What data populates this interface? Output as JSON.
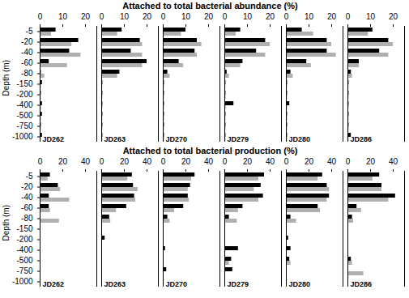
{
  "chart_data": [
    {
      "type": "bar",
      "orientation": "horizontal",
      "title": "Attached to total bacterial abundance (%)",
      "ylabel": "Depth (m)",
      "categories": [
        "-5",
        "-20",
        "-40",
        "-60",
        "-80",
        "-150",
        "-200",
        "-400",
        "-500",
        "-750",
        "-1000"
      ],
      "xlim": [
        0,
        25
      ],
      "xticks": [
        0,
        10,
        20
      ],
      "panels": [
        {
          "name": "JD262",
          "series": [
            {
              "color": "#000000",
              "values": [
                7,
                17,
                13,
                4,
                0.5,
                1,
                0.5,
                1,
                1,
                0.5,
                1
              ]
            },
            {
              "color": "#b0b0b0",
              "values": [
                5,
                14,
                18,
                12,
                2,
                0.5,
                0.5,
                0.5,
                0.5,
                0.5,
                0.5
              ]
            }
          ]
        },
        {
          "name": "JD263",
          "series": [
            {
              "color": "#000000",
              "values": [
                9,
                17,
                13,
                20,
                8,
                0.5,
                0.5,
                0.5,
                0.5,
                0.5,
                0.5
              ]
            },
            {
              "color": "#b0b0b0",
              "values": [
                7,
                18,
                18,
                18,
                7,
                0.5,
                0.5,
                0.5,
                0.5,
                0.5,
                0.5
              ]
            }
          ]
        },
        {
          "name": "JD270",
          "series": [
            {
              "color": "#000000",
              "values": [
                10,
                15,
                14,
                7,
                2,
                0.5,
                0.5,
                0.5,
                0.5,
                0.5,
                0.5
              ]
            },
            {
              "color": "#b0b0b0",
              "values": [
                8,
                17,
                15,
                9,
                3,
                0.5,
                0.5,
                0.5,
                0.5,
                0.5,
                0.5
              ]
            }
          ]
        },
        {
          "name": "JD279",
          "series": [
            {
              "color": "#000000",
              "values": [
                7,
                18,
                14,
                8,
                1,
                0.5,
                0.5,
                4,
                0.5,
                0.5,
                0.5
              ]
            },
            {
              "color": "#b0b0b0",
              "values": [
                5,
                20,
                18,
                7,
                2,
                0.5,
                0.5,
                0.5,
                0.5,
                0.5,
                0.5
              ]
            }
          ]
        },
        {
          "name": "JD280",
          "series": [
            {
              "color": "#000000",
              "values": [
                7,
                18,
                18,
                9,
                2,
                0.5,
                0.5,
                1.5,
                0.5,
                0.5,
                0.5
              ]
            },
            {
              "color": "#b0b0b0",
              "values": [
                12,
                20,
                22,
                11,
                3,
                0.5,
                0.5,
                0.5,
                0.5,
                0.5,
                0.5
              ]
            }
          ]
        },
        {
          "name": "JD286",
          "series": [
            {
              "color": "#000000",
              "values": [
                11,
                18,
                14,
                5,
                1.5,
                0.5,
                0.5,
                0.5,
                0.5,
                0.5,
                1.5
              ]
            },
            {
              "color": "#b0b0b0",
              "values": [
                9,
                20,
                18,
                5,
                2,
                0.5,
                0.5,
                0.5,
                0.5,
                0.5,
                0.5
              ]
            }
          ]
        }
      ]
    },
    {
      "type": "bar",
      "orientation": "horizontal",
      "title": "Attached to total bacterial production (%)",
      "ylabel": "Depth (m)",
      "categories": [
        "-5",
        "-20",
        "-40",
        "-60",
        "-80",
        "-150",
        "-200",
        "-400",
        "-500",
        "-750",
        "-1000"
      ],
      "xlim": [
        0,
        50
      ],
      "xticks": [
        0,
        20,
        40
      ],
      "panels": [
        {
          "name": "JD262",
          "series": [
            {
              "color": "#000000",
              "values": [
                9,
                16,
                8,
                8,
                0.5,
                0.5,
                0.5,
                0.5,
                0.5,
                0.5,
                0.5
              ]
            },
            {
              "color": "#b0b0b0",
              "values": [
                7,
                18,
                26,
                9,
                17,
                0.5,
                0.5,
                0.5,
                0.5,
                0.5,
                0.5
              ]
            }
          ]
        },
        {
          "name": "JD263",
          "series": [
            {
              "color": "#000000",
              "values": [
                27,
                28,
                29,
                22,
                7,
                0.5,
                3,
                0.5,
                0.5,
                0.5,
                0.5
              ]
            },
            {
              "color": "#b0b0b0",
              "values": [
                23,
                32,
                30,
                13,
                8,
                0.5,
                0.5,
                0.5,
                0.5,
                0.5,
                0.5
              ]
            }
          ]
        },
        {
          "name": "JD270",
          "series": [
            {
              "color": "#000000",
              "values": [
                28,
                24,
                22,
                18,
                4,
                0.5,
                0.5,
                2,
                0.5,
                3,
                0.5
              ]
            },
            {
              "color": "#b0b0b0",
              "values": [
                25,
                22,
                23,
                10,
                6,
                0.5,
                0.5,
                0.5,
                0.5,
                0.5,
                0.5
              ]
            }
          ]
        },
        {
          "name": "JD279",
          "series": [
            {
              "color": "#000000",
              "values": [
                35,
                32,
                34,
                16,
                4,
                0.5,
                0.5,
                12,
                6,
                7,
                0.5
              ]
            },
            {
              "color": "#b0b0b0",
              "values": [
                30,
                26,
                30,
                12,
                11,
                0.5,
                0.5,
                0.5,
                4,
                0.5,
                0.5
              ]
            }
          ]
        },
        {
          "name": "JD280",
          "series": [
            {
              "color": "#000000",
              "values": [
                32,
                36,
                38,
                28,
                4,
                0.5,
                2,
                4,
                3,
                0.5,
                0.5
              ]
            },
            {
              "color": "#b0b0b0",
              "values": [
                28,
                38,
                36,
                30,
                9,
                0.5,
                0.5,
                0.5,
                4,
                0.5,
                0.5
              ]
            }
          ]
        },
        {
          "name": "JD286",
          "series": [
            {
              "color": "#000000",
              "values": [
                28,
                30,
                42,
                8,
                4,
                0.5,
                0.5,
                0.5,
                3,
                0.5,
                0.5
              ]
            },
            {
              "color": "#b0b0b0",
              "values": [
                22,
                30,
                36,
                12,
                5,
                0.5,
                0.5,
                0.5,
                4,
                14,
                0.5
              ]
            }
          ]
        }
      ]
    }
  ]
}
